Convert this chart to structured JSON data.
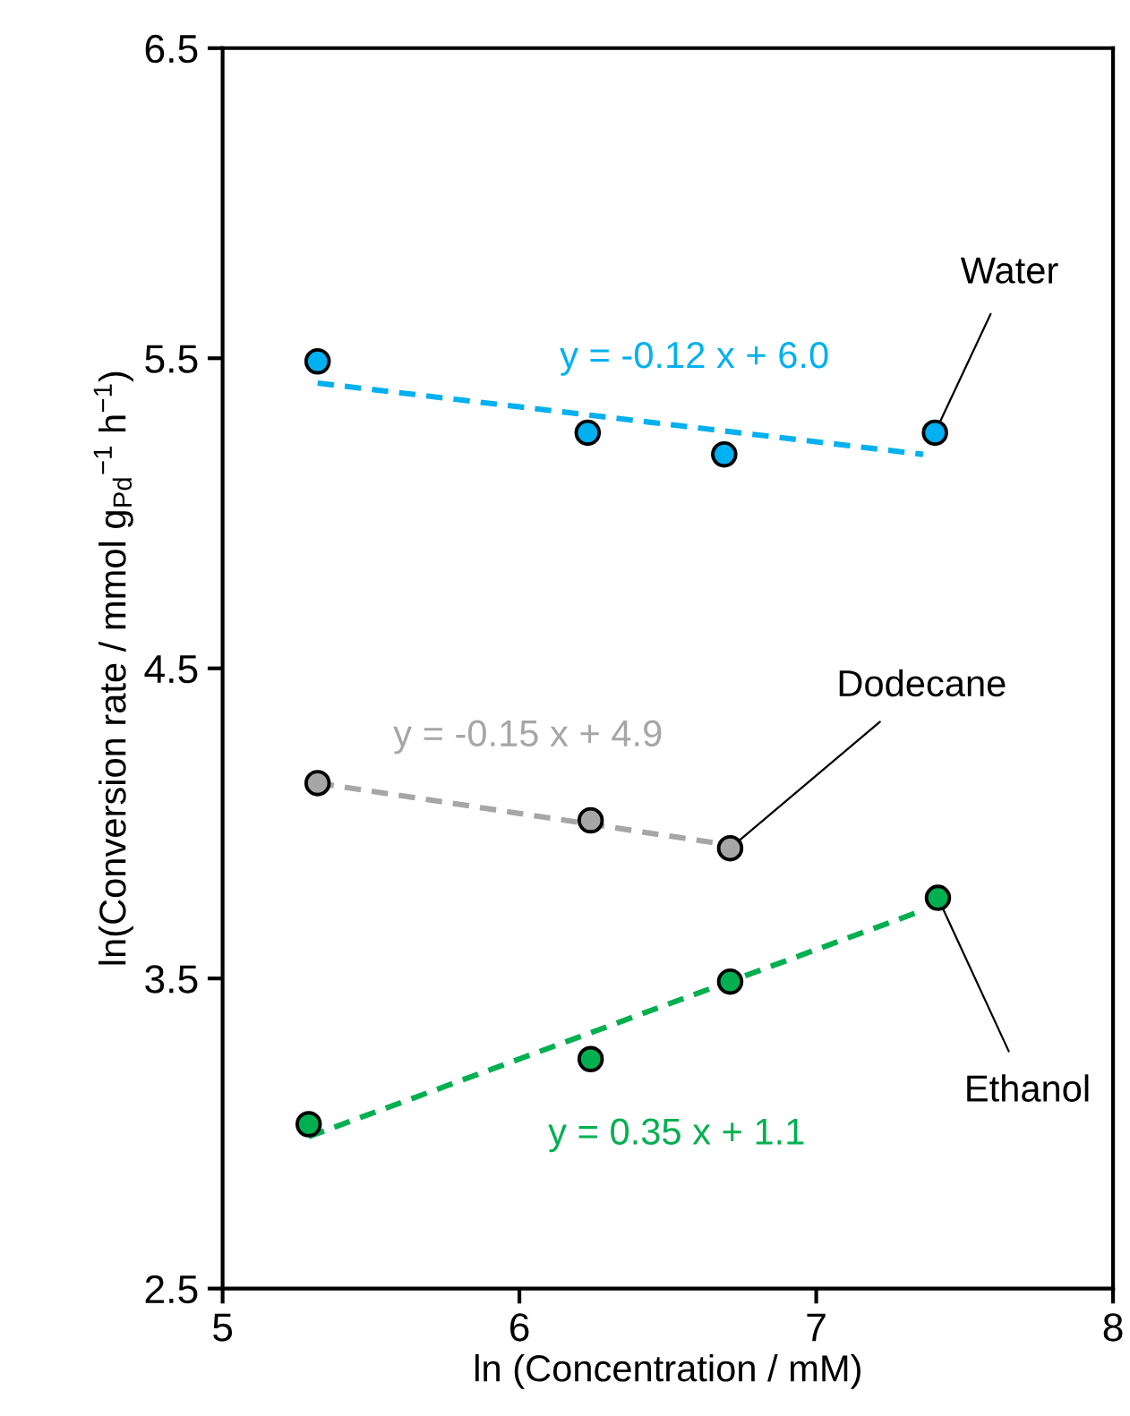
{
  "chart_data": {
    "type": "scatter",
    "xlabel": "ln (Concentration / mM)",
    "ylabel": "ln(Conversion rate / mmol g$_{Pd}$$^{−1}$ h$^{−1}$)",
    "xlim": [
      5,
      8
    ],
    "ylim": [
      2.5,
      6.5
    ],
    "xticks": [
      5,
      6,
      7,
      8
    ],
    "yticks": [
      2.5,
      3.5,
      4.5,
      5.5,
      6.5
    ],
    "grid": false,
    "legend": false,
    "series": [
      {
        "name": "Water",
        "marker": "circle",
        "color": "#00b0f0",
        "x": [
          5.32,
          6.23,
          6.69,
          7.4
        ],
        "values": [
          5.49,
          5.26,
          5.19,
          5.26
        ]
      },
      {
        "name": "Dodecane",
        "marker": "circle",
        "color": "#a6a6a6",
        "x": [
          5.32,
          6.24,
          6.71
        ],
        "values": [
          4.13,
          4.01,
          3.92
        ]
      },
      {
        "name": "Ethanol",
        "marker": "circle",
        "color": "#00b050",
        "x": [
          5.29,
          6.24,
          6.71,
          7.41
        ],
        "values": [
          3.03,
          3.24,
          3.49,
          3.76
        ]
      },
      {
        "type": "line",
        "line_style": "dashed",
        "color": "#00b0f0",
        "x": [
          5.32,
          7.36
        ],
        "values": [
          5.42,
          5.19
        ]
      },
      {
        "type": "line",
        "line_style": "dashed",
        "color": "#a6a6a6",
        "x": [
          5.32,
          6.71
        ],
        "values": [
          4.13,
          3.93
        ]
      },
      {
        "type": "line",
        "line_style": "dashed",
        "color": "#00b050",
        "x": [
          5.29,
          7.36
        ],
        "values": [
          2.99,
          3.72
        ]
      }
    ],
    "annotations": [
      "y = -0.12 x + 6.0",
      "y = -0.15 x + 4.9",
      "y = 0.35 x + 1.1"
    ]
  }
}
